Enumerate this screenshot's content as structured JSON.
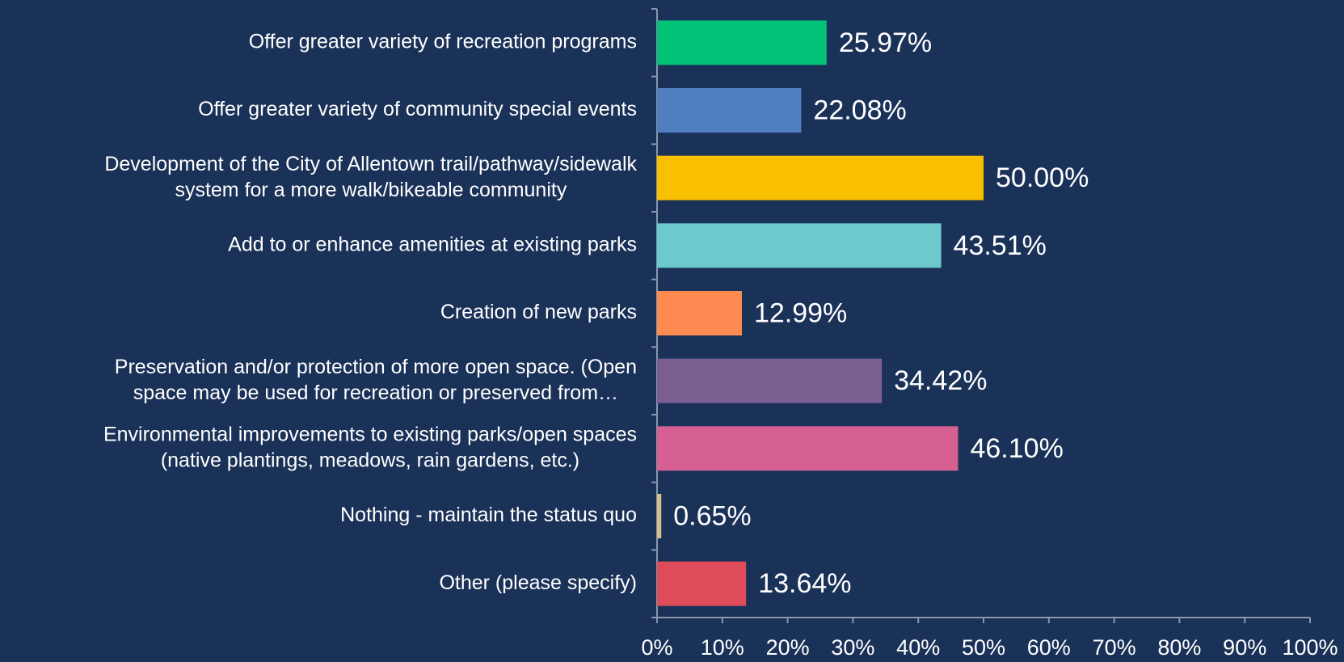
{
  "chart_data": {
    "type": "hbar",
    "categories": [
      [
        "Offer greater variety of recreation programs"
      ],
      [
        "Offer greater variety of community special events"
      ],
      [
        "Development of the City of Allentown trail/pathway/sidewalk",
        "system for a more walk/bikeable community"
      ],
      [
        "Add to or enhance amenities at existing parks"
      ],
      [
        "Creation of new parks"
      ],
      [
        "Preservation and/or protection of more open space. (Open",
        "space may be used for recreation or preserved from…"
      ],
      [
        "Environmental improvements to existing parks/open spaces",
        "(native plantings, meadows, rain gardens, etc.)"
      ],
      [
        "Nothing - maintain the status quo"
      ],
      [
        "Other (please specify)"
      ]
    ],
    "values": [
      25.97,
      22.08,
      50.0,
      43.51,
      12.99,
      34.42,
      46.1,
      0.65,
      13.64
    ],
    "value_labels": [
      "25.97%",
      "22.08%",
      "50.00%",
      "43.51%",
      "12.99%",
      "34.42%",
      "46.10%",
      "0.65%",
      "13.64%"
    ],
    "colors": [
      "#00c176",
      "#4f7fbf",
      "#f9c000",
      "#6ccacd",
      "#fd8b52",
      "#7c5f92",
      "#d66092",
      "#d6c08e",
      "#de4c5a"
    ],
    "xlim": [
      0,
      100
    ],
    "xticks": [
      {
        "value": 0,
        "label": "0%"
      },
      {
        "value": 10,
        "label": "10%"
      },
      {
        "value": 20,
        "label": "20%"
      },
      {
        "value": 30,
        "label": "30%"
      },
      {
        "value": 40,
        "label": "40%"
      },
      {
        "value": 50,
        "label": "50%"
      },
      {
        "value": 60,
        "label": "60%"
      },
      {
        "value": 70,
        "label": "70%"
      },
      {
        "value": 80,
        "label": "80%"
      },
      {
        "value": 90,
        "label": "90%"
      },
      {
        "value": 100,
        "label": "100%"
      }
    ],
    "grid": false
  }
}
